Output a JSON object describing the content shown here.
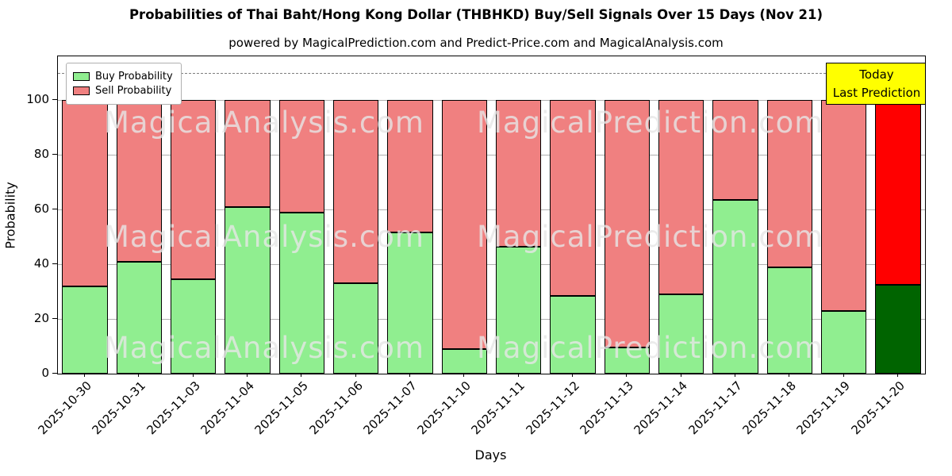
{
  "title": "Probabilities of Thai Baht/Hong Kong Dollar (THBHKD) Buy/Sell Signals Over 15 Days (Nov 21)",
  "subtitle": "powered by MagicalPrediction.com and Predict-Price.com and MagicalAnalysis.com",
  "legend": {
    "buy": "Buy Probability",
    "sell": "Sell Probability"
  },
  "annotation": {
    "line1": "Today",
    "line2": "Last Prediction"
  },
  "watermarks": [
    "MagicalAnalysis.com",
    "MagicalPrediction.com"
  ],
  "colors": {
    "buy": "#90EE90",
    "sell": "#F08080",
    "today_buy": "#006400",
    "today_sell": "#FF0000",
    "annotation_bg": "#FFFF00",
    "grid": "#b0b0b0",
    "dashed_line": "#7f7f7f"
  },
  "chart_data": {
    "type": "bar",
    "stacked": true,
    "title": "Probabilities of Thai Baht/Hong Kong Dollar (THBHKD) Buy/Sell Signals Over 15 Days (Nov 21)",
    "xlabel": "Days",
    "ylabel": "Probability",
    "ylim": [
      0,
      116
    ],
    "yticks": [
      0,
      20,
      40,
      60,
      80,
      100
    ],
    "dashed_line_y": 110,
    "grid": true,
    "legend_position": "upper left",
    "categories": [
      "2025-10-30",
      "2025-10-31",
      "2025-11-03",
      "2025-11-04",
      "2025-11-05",
      "2025-11-06",
      "2025-11-07",
      "2025-11-10",
      "2025-11-11",
      "2025-11-12",
      "2025-11-13",
      "2025-11-14",
      "2025-11-17",
      "2025-11-18",
      "2025-11-19",
      "2025-11-20"
    ],
    "series": [
      {
        "name": "Buy Probability",
        "values": [
          32,
          41,
          34.5,
          61,
          59,
          33,
          51.5,
          9,
          46.5,
          28.5,
          9.5,
          29,
          63.5,
          39,
          23,
          32.5
        ]
      },
      {
        "name": "Sell Probability",
        "values": [
          68,
          59,
          65.5,
          39,
          41,
          67,
          48.5,
          91,
          53.5,
          71.5,
          90.5,
          71,
          36.5,
          61,
          77,
          67.5
        ]
      }
    ],
    "highlight_last_bar": true
  }
}
